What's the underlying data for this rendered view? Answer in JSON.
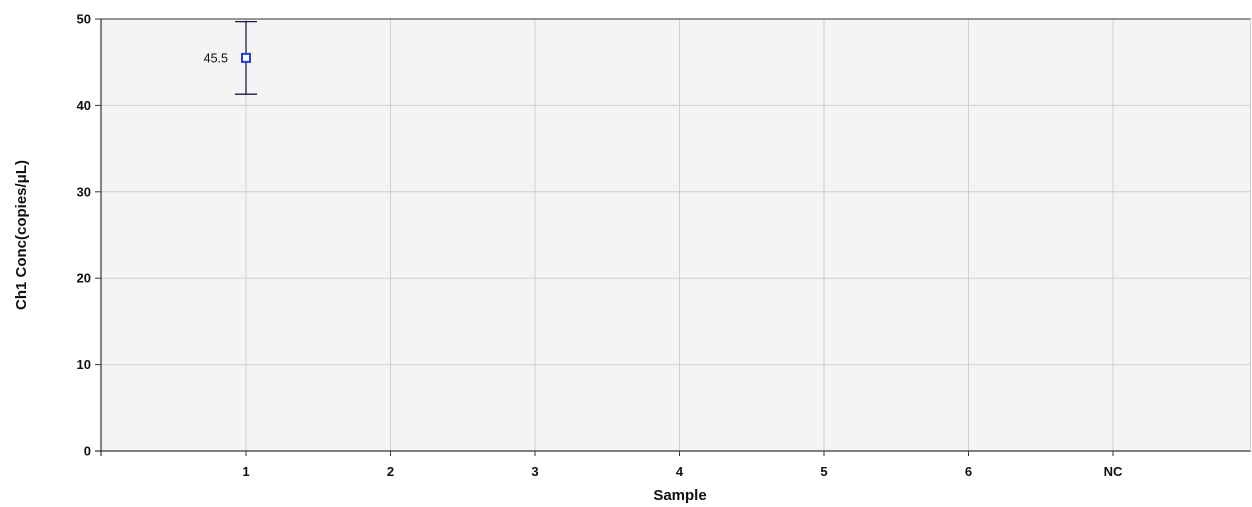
{
  "chart_data": {
    "type": "scatter",
    "title": "",
    "xlabel": "Sample",
    "ylabel": "Ch1 Conc(copies/μL)",
    "categories": [
      "1",
      "2",
      "3",
      "4",
      "5",
      "6",
      "NC"
    ],
    "ylim": [
      0,
      50
    ],
    "yticks": [
      0,
      10,
      20,
      30,
      40,
      50
    ],
    "grid": true,
    "legend": "none",
    "series": [
      {
        "points": [
          {
            "category": "1",
            "value": 45.5,
            "label": "45.5",
            "error_low": 41.3,
            "error_high": 49.7
          }
        ]
      }
    ],
    "colors": {
      "plot_background": "#f4f4f4",
      "grid": "#cfcfcf",
      "axis": "#333333",
      "marker": "#1f3fd6",
      "error_bar": "#1a1a4a"
    }
  }
}
